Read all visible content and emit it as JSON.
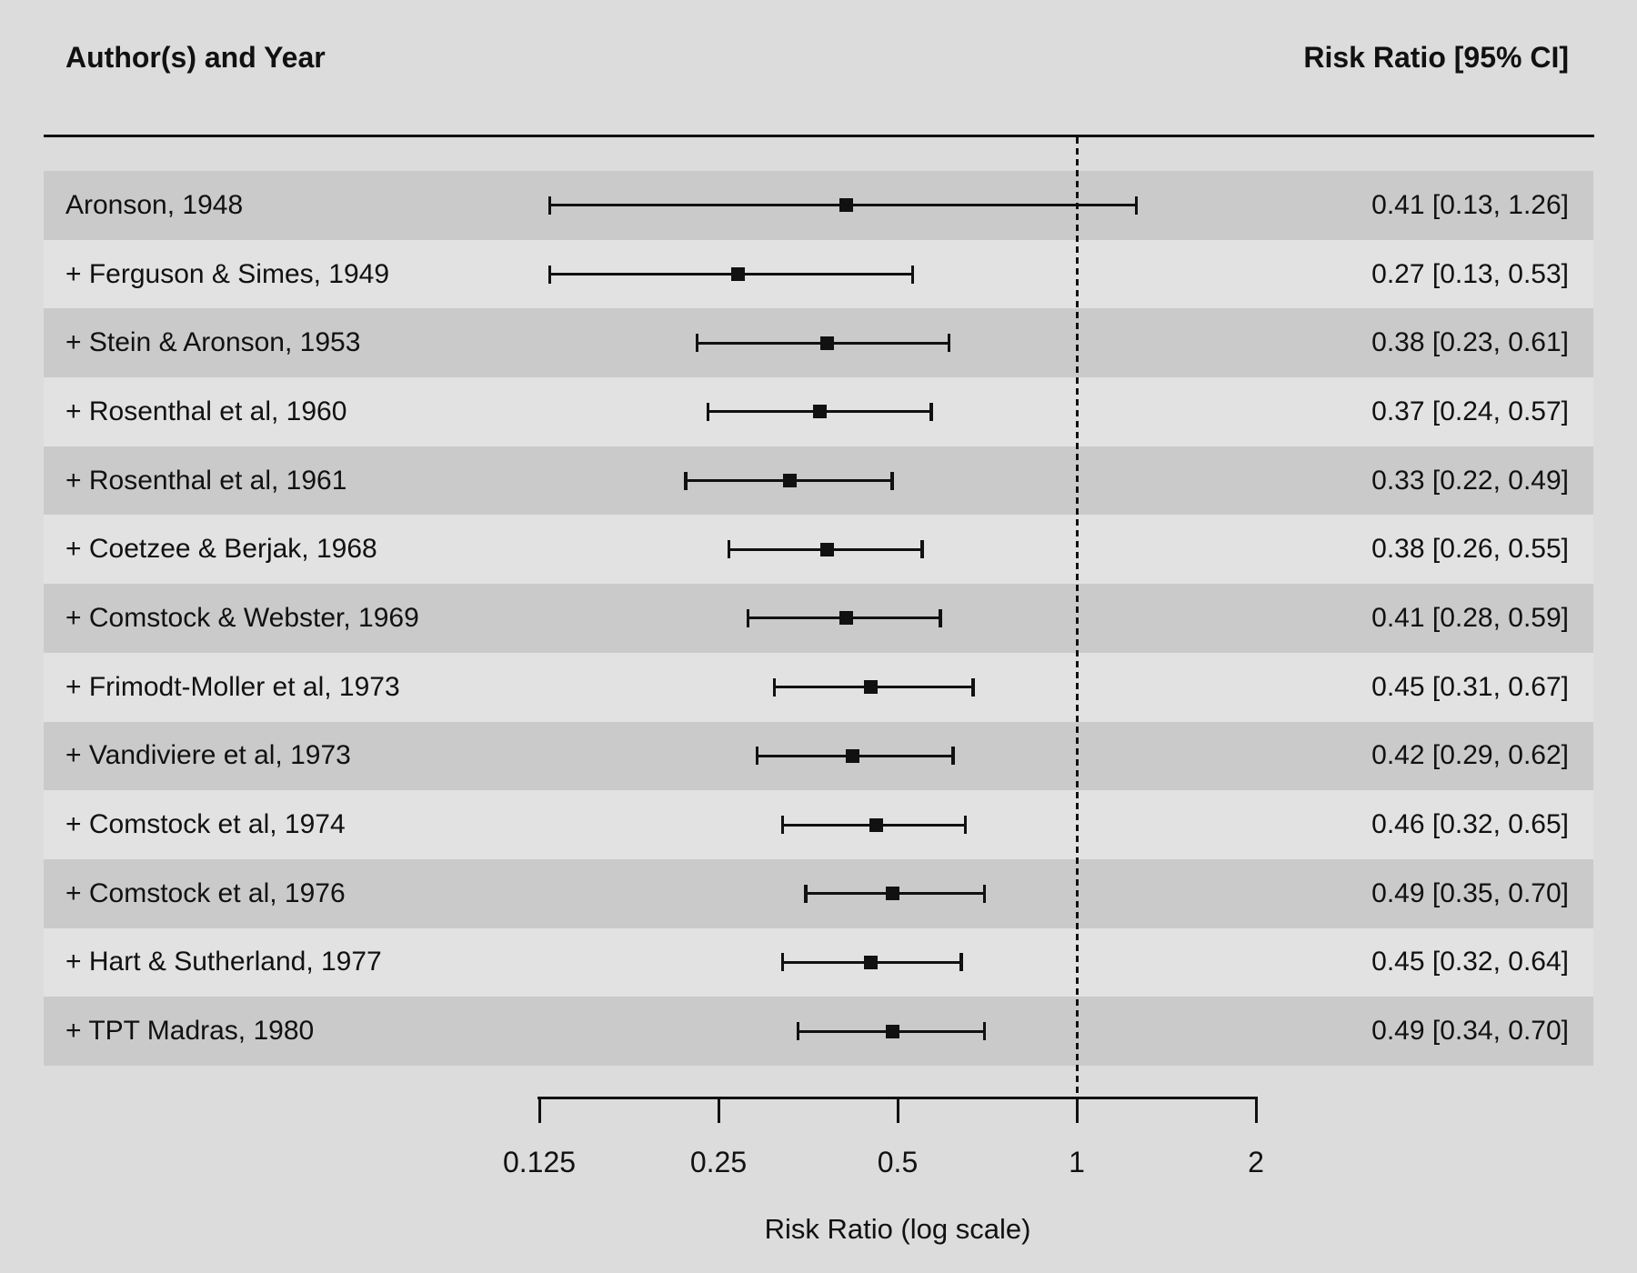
{
  "header": {
    "author_label": "Author(s) and Year",
    "effect_label": "Risk Ratio [95% CI]"
  },
  "colors": {
    "background": "#dcdcdc",
    "row_stripe_dark": "#cacaca",
    "row_stripe_light": "#e2e2e2",
    "ink": "#111111"
  },
  "chart_data": {
    "type": "forest",
    "effect_measure": "Risk Ratio",
    "studies": [
      {
        "label": "Aronson, 1948",
        "est": 0.41,
        "lo": 0.13,
        "hi": 1.26,
        "value_text": "0.41 [0.13, 1.26]"
      },
      {
        "label": "+ Ferguson & Simes, 1949",
        "est": 0.27,
        "lo": 0.13,
        "hi": 0.53,
        "value_text": "0.27 [0.13, 0.53]"
      },
      {
        "label": "+ Stein & Aronson, 1953",
        "est": 0.38,
        "lo": 0.23,
        "hi": 0.61,
        "value_text": "0.38 [0.23, 0.61]"
      },
      {
        "label": "+ Rosenthal et al, 1960",
        "est": 0.37,
        "lo": 0.24,
        "hi": 0.57,
        "value_text": "0.37 [0.24, 0.57]"
      },
      {
        "label": "+ Rosenthal et al, 1961",
        "est": 0.33,
        "lo": 0.22,
        "hi": 0.49,
        "value_text": "0.33 [0.22, 0.49]"
      },
      {
        "label": "+ Coetzee & Berjak, 1968",
        "est": 0.38,
        "lo": 0.26,
        "hi": 0.55,
        "value_text": "0.38 [0.26, 0.55]"
      },
      {
        "label": "+ Comstock & Webster, 1969",
        "est": 0.41,
        "lo": 0.28,
        "hi": 0.59,
        "value_text": "0.41 [0.28, 0.59]"
      },
      {
        "label": "+ Frimodt-Moller et al, 1973",
        "est": 0.45,
        "lo": 0.31,
        "hi": 0.67,
        "value_text": "0.45 [0.31, 0.67]"
      },
      {
        "label": "+ Vandiviere et al, 1973",
        "est": 0.42,
        "lo": 0.29,
        "hi": 0.62,
        "value_text": "0.42 [0.29, 0.62]"
      },
      {
        "label": "+ Comstock et al, 1974",
        "est": 0.46,
        "lo": 0.32,
        "hi": 0.65,
        "value_text": "0.46 [0.32, 0.65]"
      },
      {
        "label": "+ Comstock et al, 1976",
        "est": 0.49,
        "lo": 0.35,
        "hi": 0.7,
        "value_text": "0.49 [0.35, 0.70]"
      },
      {
        "label": "+ Hart & Sutherland, 1977",
        "est": 0.45,
        "lo": 0.32,
        "hi": 0.64,
        "value_text": "0.45 [0.32, 0.64]"
      },
      {
        "label": "+ TPT Madras, 1980",
        "est": 0.49,
        "lo": 0.34,
        "hi": 0.7,
        "value_text": "0.49 [0.34, 0.70]"
      }
    ],
    "x_axis": {
      "scale": "log",
      "range": [
        0.125,
        2
      ],
      "ticks": [
        0.125,
        0.25,
        0.5,
        1,
        2
      ],
      "tick_labels": [
        "0.125",
        "0.25",
        "0.5",
        "1",
        "2"
      ],
      "label": "Risk Ratio (log scale)",
      "reference_line": 1
    },
    "legend": null,
    "grid": false
  }
}
